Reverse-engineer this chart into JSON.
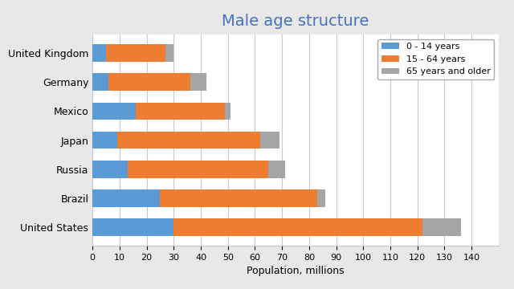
{
  "title": "Male age structure",
  "xlabel": "Population, millions",
  "countries": [
    "United States",
    "Brazil",
    "Russia",
    "Japan",
    "Mexico",
    "Germany",
    "United Kingdom"
  ],
  "age_0_14": [
    30,
    25,
    13,
    9,
    16,
    6,
    5
  ],
  "age_15_64": [
    92,
    58,
    52,
    53,
    33,
    30,
    22
  ],
  "age_65plus": [
    14,
    3,
    6,
    7,
    2,
    6,
    3
  ],
  "color_0_14": "#5b9bd5",
  "color_15_64": "#ed7d31",
  "color_65plus": "#a5a5a5",
  "title_color": "#4472c4",
  "title_fontsize": 14,
  "label_fontsize": 9,
  "tick_fontsize": 8,
  "legend_labels": [
    "0 - 14 years",
    "15 - 64 years",
    "65 years and older"
  ],
  "legend_fontsize": 8,
  "xlim": [
    0,
    150
  ],
  "xticks": [
    0,
    10,
    20,
    30,
    40,
    50,
    60,
    70,
    80,
    90,
    100,
    110,
    120,
    130,
    140
  ],
  "bar_height": 0.6,
  "background_color": "#e8e8e8",
  "plot_background": "#ffffff",
  "grid_color": "#c8c8c8"
}
